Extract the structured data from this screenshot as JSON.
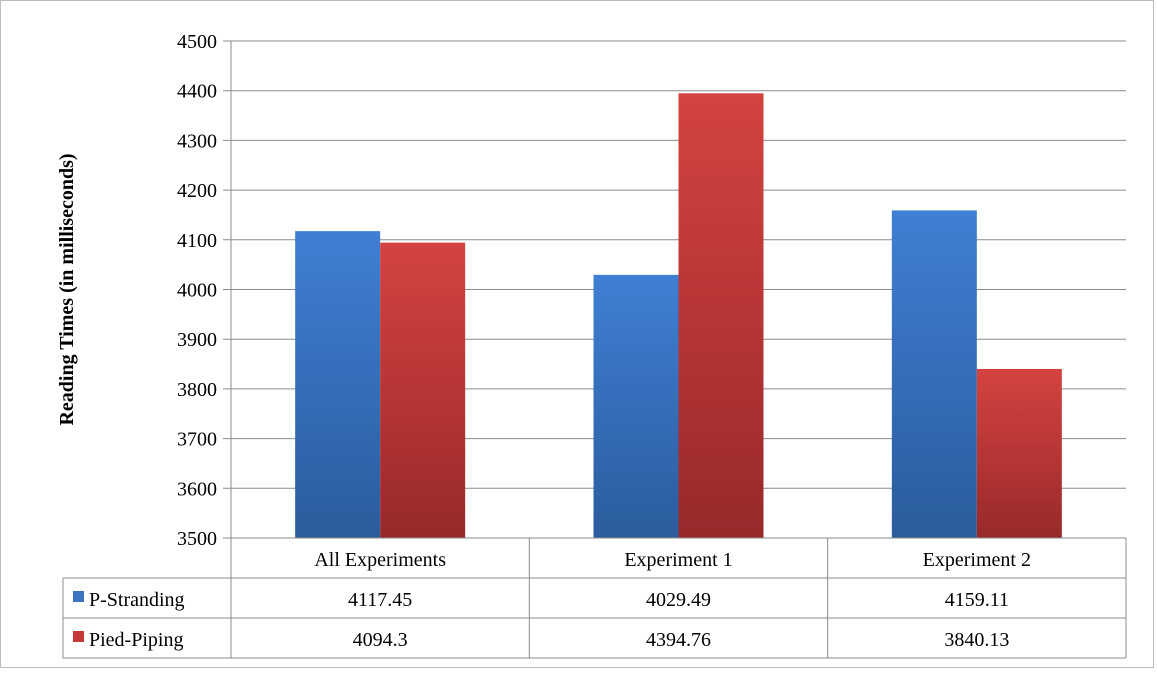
{
  "chart_data": {
    "type": "bar",
    "title": "",
    "xlabel": "",
    "ylabel": "Reading Times (in milliseconds)",
    "ylim": [
      3500,
      4500
    ],
    "yticks": [
      3500,
      3600,
      3700,
      3800,
      3900,
      4000,
      4100,
      4200,
      4300,
      4400,
      4500
    ],
    "grid": true,
    "legend": "data-table",
    "categories": [
      "All Experiments",
      "Experiment 1",
      "Experiment 2"
    ],
    "series": [
      {
        "name": "P-Stranding",
        "values": [
          4117.45,
          4029.49,
          4159.11
        ],
        "labels": [
          "4117.45",
          "4029.49",
          "4159.11"
        ],
        "color": "#3b73c2"
      },
      {
        "name": "Pied-Piping",
        "values": [
          4094.3,
          4394.76,
          3840.13
        ],
        "labels": [
          "4094.3",
          "4394.76",
          "3840.13"
        ],
        "color": "#c53a37"
      }
    ]
  }
}
